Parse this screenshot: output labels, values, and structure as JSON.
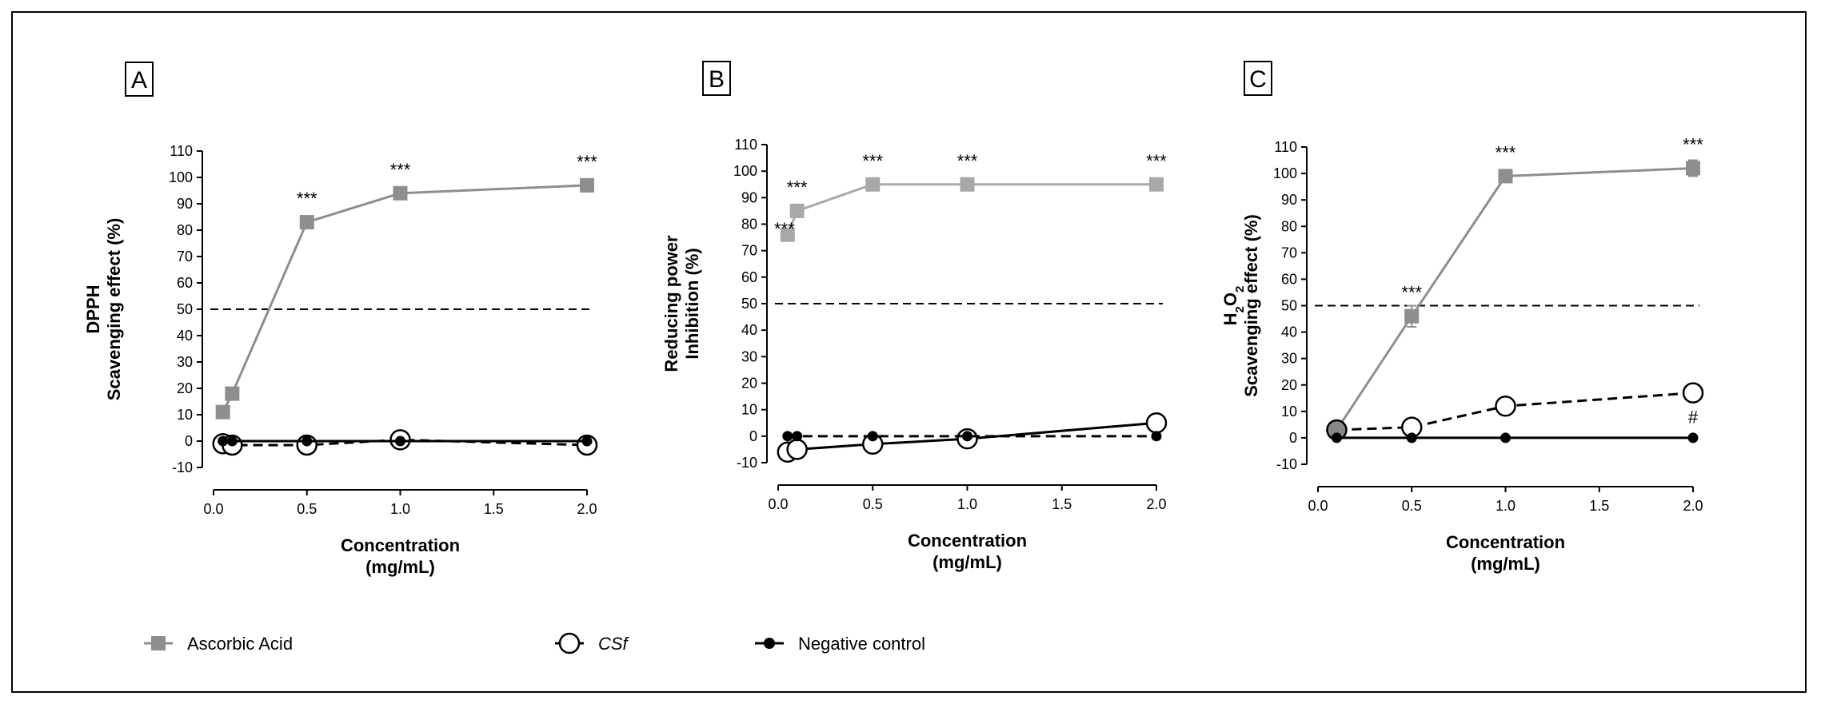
{
  "colors": {
    "ascorbic": "#8e8e8e",
    "ascorbic_b": "#a8a8a8",
    "csf": "#000000",
    "negative": "#000000",
    "axis": "#000000"
  },
  "legend": [
    {
      "key": "ascorbic",
      "label": "Ascorbic Acid",
      "marker": "square"
    },
    {
      "key": "csf",
      "label": "CSf",
      "marker": "open-circle"
    },
    {
      "key": "negative",
      "label": "Negative control",
      "marker": "filled-circle"
    }
  ],
  "chart_data": [
    {
      "type": "line",
      "panel": "A",
      "ylabel": [
        "DPPH",
        "Scavenging effect (%)"
      ],
      "xlabel": [
        "Concentration",
        "(mg/mL)"
      ],
      "xlim": [
        0,
        2
      ],
      "ylim": [
        -10,
        110
      ],
      "xticks": [
        "0.0",
        "0.5",
        "1.0",
        "1.5",
        "2.0"
      ],
      "yticks": [
        "-10",
        "0",
        "10",
        "20",
        "30",
        "40",
        "50",
        "60",
        "70",
        "80",
        "90",
        "100",
        "110"
      ],
      "reference_line": 50,
      "series": [
        {
          "name": "Ascorbic Acid",
          "x": [
            0.05,
            0.1,
            0.5,
            1.0,
            2.0
          ],
          "y": [
            11,
            18,
            83,
            94,
            97
          ]
        },
        {
          "name": "CSf",
          "x": [
            0.05,
            0.1,
            0.5,
            1.0,
            2.0
          ],
          "y": [
            -1,
            -1.5,
            -1.5,
            0.5,
            -1.5
          ]
        },
        {
          "name": "Negative control",
          "x": [
            0.05,
            0.1,
            0.5,
            1.0,
            2.0
          ],
          "y": [
            0,
            0,
            0,
            0,
            0
          ]
        }
      ],
      "annotations": [
        {
          "text": "***",
          "x": 0.5,
          "y": 83
        },
        {
          "text": "***",
          "x": 1.0,
          "y": 94
        },
        {
          "text": "***",
          "x": 2.0,
          "y": 97
        }
      ]
    },
    {
      "type": "line",
      "panel": "B",
      "ylabel": [
        "Reducing power",
        "Inhibition (%)"
      ],
      "xlabel": [
        "Concentration",
        "(mg/mL)"
      ],
      "xlim": [
        0,
        2
      ],
      "ylim": [
        -10,
        110
      ],
      "xticks": [
        "0.0",
        "0.5",
        "1.0",
        "1.5",
        "2.0"
      ],
      "yticks": [
        "-10",
        "0",
        "10",
        "20",
        "30",
        "40",
        "50",
        "60",
        "70",
        "80",
        "90",
        "100",
        "110"
      ],
      "reference_line": 50,
      "series": [
        {
          "name": "Ascorbic Acid",
          "x": [
            0.05,
            0.1,
            0.5,
            1.0,
            2.0
          ],
          "y": [
            76,
            85,
            95,
            95,
            95
          ]
        },
        {
          "name": "CSf",
          "x": [
            0.05,
            0.1,
            0.5,
            1.0,
            2.0
          ],
          "y": [
            -6,
            -5,
            -3,
            -1,
            5
          ]
        },
        {
          "name": "Negative control",
          "x": [
            0.05,
            0.1,
            0.5,
            1.0,
            2.0
          ],
          "y": [
            0,
            0,
            0,
            0,
            0
          ]
        }
      ],
      "annotations": [
        {
          "text": "***",
          "x": 0.05,
          "y": 76
        },
        {
          "text": "***",
          "x": 0.1,
          "y": 85
        },
        {
          "text": "***",
          "x": 0.5,
          "y": 95
        },
        {
          "text": "***",
          "x": 1.0,
          "y": 95
        },
        {
          "text": "***",
          "x": 2.0,
          "y": 95
        }
      ]
    },
    {
      "type": "line",
      "panel": "C",
      "ylabel": [
        "H2O2",
        "Scavenging effect (%)"
      ],
      "xlabel": [
        "Concentration",
        "(mg/mL)"
      ],
      "xlim": [
        0,
        2
      ],
      "ylim": [
        -10,
        110
      ],
      "xticks": [
        "0.0",
        "0.5",
        "1.0",
        "1.5",
        "2.0"
      ],
      "yticks": [
        "-10",
        "0",
        "10",
        "20",
        "30",
        "40",
        "50",
        "60",
        "70",
        "80",
        "90",
        "100",
        "110"
      ],
      "reference_line": 50,
      "series": [
        {
          "name": "Ascorbic Acid",
          "x": [
            0.1,
            0.5,
            1.0,
            2.0
          ],
          "y": [
            3,
            46,
            99,
            102
          ],
          "error": [
            0,
            4,
            1,
            3
          ]
        },
        {
          "name": "CSf",
          "x": [
            0.1,
            0.5,
            1.0,
            2.0
          ],
          "y": [
            3,
            4,
            12,
            17
          ]
        },
        {
          "name": "Negative control",
          "x": [
            0.1,
            0.5,
            1.0,
            2.0
          ],
          "y": [
            0,
            0,
            0,
            0
          ]
        }
      ],
      "annotations": [
        {
          "text": "***",
          "x": 0.5,
          "y": 46
        },
        {
          "text": "***",
          "x": 1.0,
          "y": 99
        },
        {
          "text": "***",
          "x": 2.0,
          "y": 102
        },
        {
          "text": "#",
          "x": 2.0,
          "y": 17
        }
      ]
    }
  ]
}
